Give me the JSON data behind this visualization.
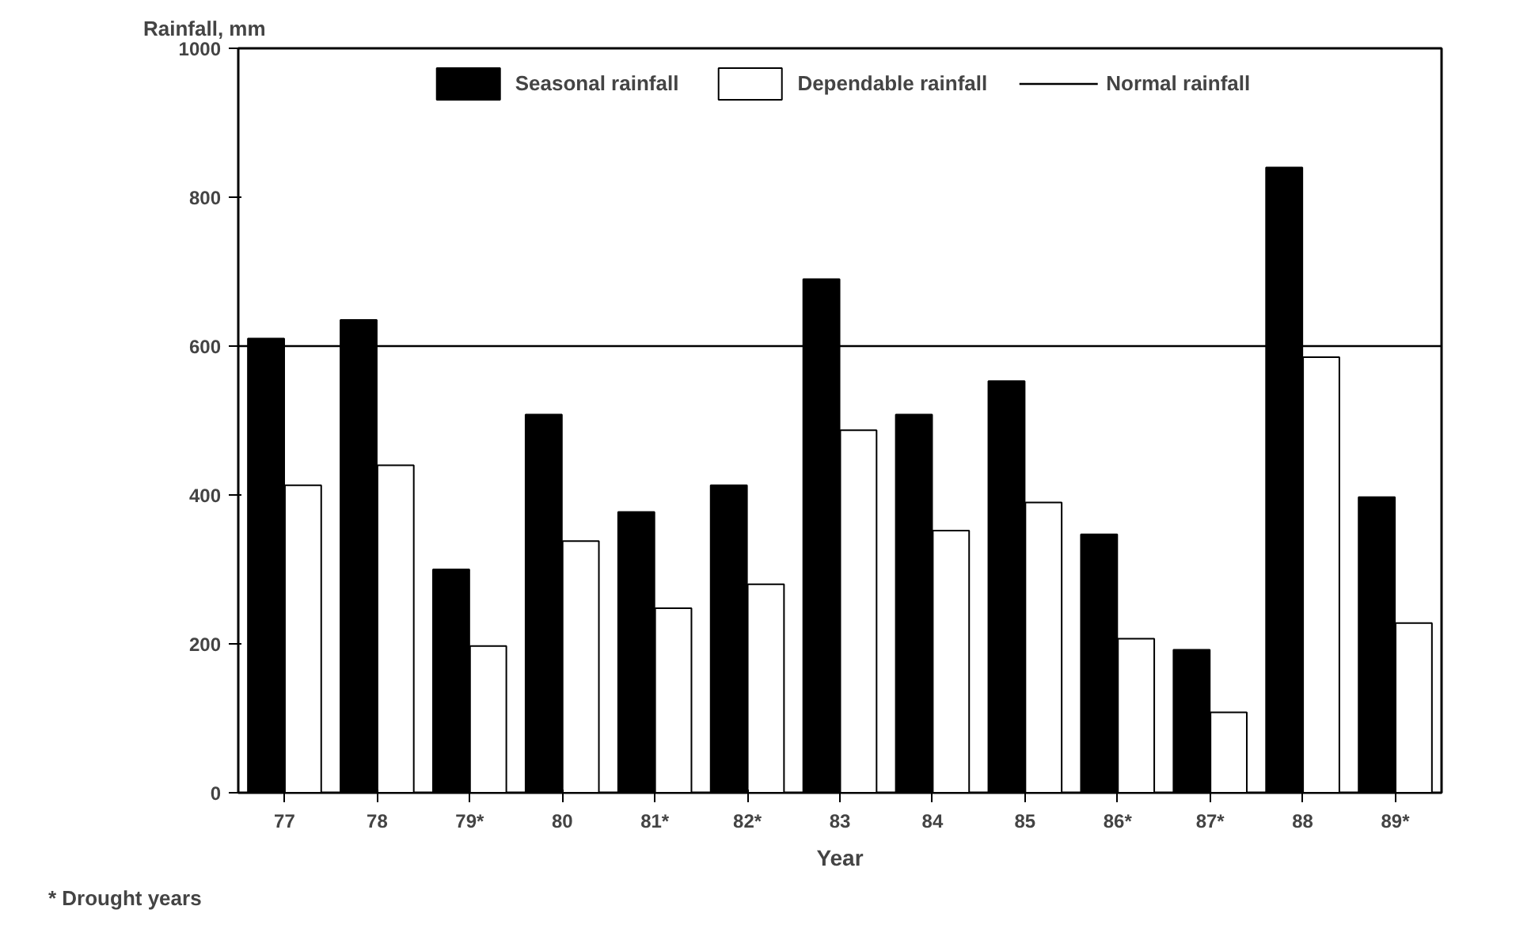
{
  "chart_data": {
    "type": "bar",
    "xlabel": "Year",
    "ylabel": "Rainfall, mm",
    "categories": [
      "77",
      "78",
      "79*",
      "80",
      "81*",
      "82*",
      "83",
      "84",
      "85",
      "86*",
      "87*",
      "88",
      "89*"
    ],
    "series": [
      {
        "name": "Seasonal rainfall",
        "color": "#000000",
        "values": [
          610,
          635,
          300,
          508,
          377,
          413,
          690,
          508,
          553,
          347,
          192,
          840,
          397
        ]
      },
      {
        "name": "Dependable rainfall",
        "color": "#ffffff",
        "values": [
          413,
          440,
          197,
          338,
          248,
          280,
          487,
          352,
          390,
          207,
          108,
          585,
          228
        ]
      }
    ],
    "ref_lines": [
      {
        "axis": "y",
        "value": 600,
        "label": "Normal rainfall",
        "color": "#000000"
      }
    ],
    "ylim": [
      0,
      1000
    ],
    "yticks": [
      0,
      200,
      400,
      600,
      800,
      1000
    ],
    "grid": false,
    "legend": "top",
    "annotations": [
      "* Drought years"
    ]
  }
}
